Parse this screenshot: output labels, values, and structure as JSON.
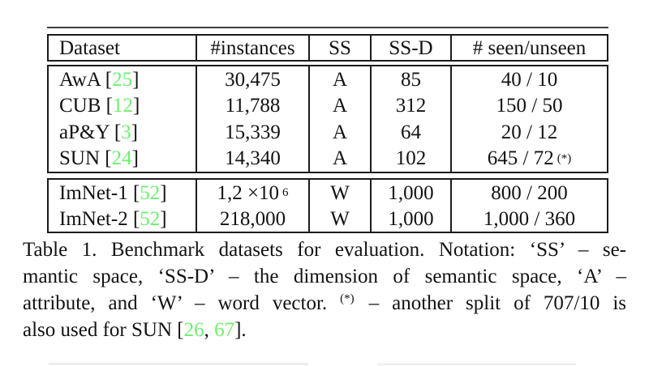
{
  "page": {
    "background": "#ffffff",
    "citation_color": "#6FEF6F",
    "border_color": "#1b1b1b"
  },
  "table": {
    "columns": [
      "Dataset",
      "#instances",
      "SS",
      "SS-D",
      "# seen/unseen"
    ],
    "groups": [
      {
        "rows": [
          {
            "dataset": "AwA",
            "cite": "25",
            "instances": "30,475",
            "ss": "A",
            "ssd": "85",
            "seen_unseen": "40 / 10",
            "note": ""
          },
          {
            "dataset": "CUB",
            "cite": "12",
            "instances": "11,788",
            "ss": "A",
            "ssd": "312",
            "seen_unseen": "150 / 50",
            "note": ""
          },
          {
            "dataset": "aP&Y",
            "cite": "3",
            "instances": "15,339",
            "ss": "A",
            "ssd": "64",
            "seen_unseen": "20 / 12",
            "note": ""
          },
          {
            "dataset": "SUN",
            "cite": "24",
            "instances": "14,340",
            "ss": "A",
            "ssd": "102",
            "seen_unseen": "645 / 72",
            "note": "(*)"
          }
        ]
      },
      {
        "rows": [
          {
            "dataset": "ImNet-1",
            "cite": "52",
            "instances": "1,2 ×10",
            "instances_sup": "6",
            "ss": "W",
            "ssd": "1,000",
            "seen_unseen": "800 / 200",
            "note": ""
          },
          {
            "dataset": "ImNet-2",
            "cite": "52",
            "instances": "218,000",
            "ss": "W",
            "ssd": "1,000",
            "seen_unseen": "1,000 / 360",
            "note": ""
          }
        ]
      }
    ]
  },
  "caption": {
    "lines": [
      {
        "justify": true,
        "segments": [
          {
            "t": "Table 1. Benchmark datasets for evaluation. Notation: ‘SS’ – se-"
          }
        ]
      },
      {
        "justify": true,
        "segments": [
          {
            "t": "mantic space, ‘SS-D’ – the dimension of semantic space, ‘A’ –"
          }
        ]
      },
      {
        "justify": true,
        "segments": [
          {
            "t": "attribute, and ‘W’ – word vector. "
          },
          {
            "t": "(*)",
            "sup": true
          },
          {
            "t": " – another split of 707/10 is"
          }
        ]
      },
      {
        "justify": false,
        "segments": [
          {
            "t": "also used for SUN ["
          },
          {
            "t": "26",
            "green": true
          },
          {
            "t": ", "
          },
          {
            "t": "67",
            "green": true
          },
          {
            "t": "]."
          }
        ]
      }
    ]
  }
}
